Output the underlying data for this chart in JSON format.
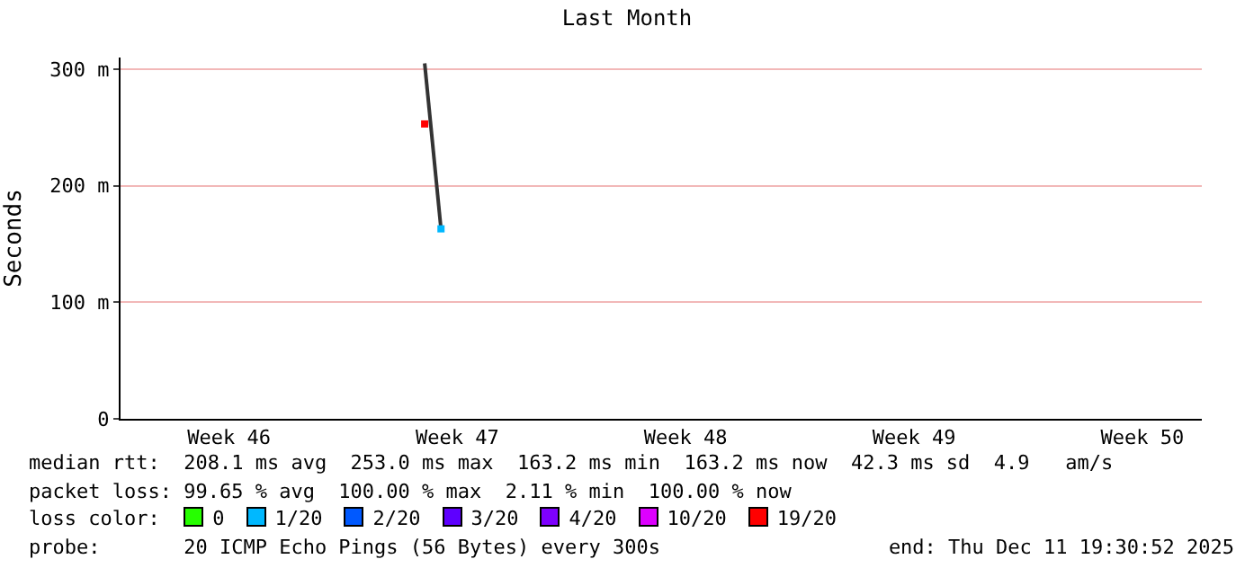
{
  "chart_data": {
    "type": "line",
    "title": "Last Month",
    "ylabel": "Seconds",
    "categories": [
      null,
      null,
      null,
      "Week 46",
      null,
      null,
      null,
      null,
      null,
      null,
      null,
      null,
      null,
      null,
      null,
      null,
      null,
      "Week 47",
      null,
      null,
      null,
      null,
      null,
      null,
      null,
      null,
      null,
      null,
      null,
      null,
      null,
      "Week 48",
      null,
      null,
      null,
      null,
      null,
      null,
      null,
      null,
      null,
      null,
      null,
      null,
      null,
      "Week 49",
      null,
      null,
      null,
      null,
      null,
      null,
      null,
      null,
      null,
      null,
      null,
      null,
      null,
      "Week 50"
    ],
    "ylim": [
      0,
      310
    ],
    "yticks": [
      0,
      {
        "value": 100,
        "label": "100 m"
      },
      {
        "value": 200,
        "label": "200 m"
      },
      {
        "value": 300,
        "label": "300 m"
      }
    ],
    "grid": "y",
    "legend": "bottom",
    "legend_title": "loss color:",
    "series": [
      {
        "color": "#333333",
        "values": [
          null,
          null,
          null,
          null,
          null,
          null,
          null,
          null,
          null,
          null,
          null,
          null,
          null,
          null,
          null,
          305,
          163,
          null,
          null,
          null,
          null,
          null,
          null,
          null,
          null,
          null,
          null,
          null,
          null,
          null,
          null,
          null,
          null,
          null,
          null,
          null,
          null,
          null,
          null,
          null,
          null,
          null,
          null,
          null,
          null,
          null,
          null,
          null,
          null,
          null,
          null,
          null,
          null,
          null,
          null,
          null,
          null,
          null,
          null,
          null
        ]
      },
      {
        "type": "scatter",
        "colors": [
          null,
          null,
          null,
          null,
          null,
          null,
          null,
          null,
          null,
          null,
          null,
          null,
          null,
          null,
          null,
          "#ff0000",
          "#00b8ff",
          null,
          null,
          null,
          null,
          null,
          null,
          null,
          null,
          null,
          null,
          null,
          null,
          null,
          null,
          null,
          null,
          null,
          null,
          null,
          null,
          null,
          null,
          null,
          null,
          null,
          null,
          null,
          null,
          null,
          null,
          null,
          null,
          null,
          null,
          null,
          null,
          null,
          null,
          null,
          null,
          null,
          null,
          null
        ],
        "values": [
          null,
          null,
          null,
          null,
          null,
          null,
          null,
          null,
          null,
          null,
          null,
          null,
          null,
          null,
          null,
          253,
          163,
          null,
          null,
          null,
          null,
          null,
          null,
          null,
          null,
          null,
          null,
          null,
          null,
          null,
          null,
          null,
          null,
          null,
          null,
          null,
          null,
          null,
          null,
          null,
          null,
          null,
          null,
          null,
          null,
          null,
          null,
          null,
          null,
          null,
          null,
          null,
          null,
          null,
          null,
          null,
          null,
          null,
          null,
          null
        ]
      },
      {
        "type": "scatter",
        "name": "0",
        "color": "#26ff00",
        "values": [
          null,
          null,
          null,
          null,
          null,
          null,
          null,
          null,
          null,
          null,
          null,
          null,
          null,
          null,
          null,
          null,
          null,
          null,
          null,
          null,
          null,
          null,
          null,
          null,
          null,
          null,
          null,
          null,
          null,
          null,
          null,
          null,
          null,
          null,
          null,
          null,
          null,
          null,
          null,
          null,
          null,
          null,
          null,
          null,
          null,
          null,
          null,
          null,
          null,
          null,
          null,
          null,
          null,
          null,
          null,
          null,
          null,
          null,
          null,
          null
        ]
      },
      {
        "type": "scatter",
        "name": "1/20",
        "color": "#00b8ff",
        "values": [
          null,
          null,
          null,
          null,
          null,
          null,
          null,
          null,
          null,
          null,
          null,
          null,
          null,
          null,
          null,
          null,
          null,
          null,
          null,
          null,
          null,
          null,
          null,
          null,
          null,
          null,
          null,
          null,
          null,
          null,
          null,
          null,
          null,
          null,
          null,
          null,
          null,
          null,
          null,
          null,
          null,
          null,
          null,
          null,
          null,
          null,
          null,
          null,
          null,
          null,
          null,
          null,
          null,
          null,
          null,
          null,
          null,
          null,
          null,
          null
        ]
      },
      {
        "type": "scatter",
        "name": "2/20",
        "color": "#0059ff",
        "values": [
          null,
          null,
          null,
          null,
          null,
          null,
          null,
          null,
          null,
          null,
          null,
          null,
          null,
          null,
          null,
          null,
          null,
          null,
          null,
          null,
          null,
          null,
          null,
          null,
          null,
          null,
          null,
          null,
          null,
          null,
          null,
          null,
          null,
          null,
          null,
          null,
          null,
          null,
          null,
          null,
          null,
          null,
          null,
          null,
          null,
          null,
          null,
          null,
          null,
          null,
          null,
          null,
          null,
          null,
          null,
          null,
          null,
          null,
          null,
          null
        ]
      },
      {
        "type": "scatter",
        "name": "3/20",
        "color": "#5e00ff",
        "values": [
          null,
          null,
          null,
          null,
          null,
          null,
          null,
          null,
          null,
          null,
          null,
          null,
          null,
          null,
          null,
          null,
          null,
          null,
          null,
          null,
          null,
          null,
          null,
          null,
          null,
          null,
          null,
          null,
          null,
          null,
          null,
          null,
          null,
          null,
          null,
          null,
          null,
          null,
          null,
          null,
          null,
          null,
          null,
          null,
          null,
          null,
          null,
          null,
          null,
          null,
          null,
          null,
          null,
          null,
          null,
          null,
          null,
          null,
          null,
          null
        ]
      },
      {
        "type": "scatter",
        "name": "4/20",
        "color": "#7e00ff",
        "values": [
          null,
          null,
          null,
          null,
          null,
          null,
          null,
          null,
          null,
          null,
          null,
          null,
          null,
          null,
          null,
          null,
          null,
          null,
          null,
          null,
          null,
          null,
          null,
          null,
          null,
          null,
          null,
          null,
          null,
          null,
          null,
          null,
          null,
          null,
          null,
          null,
          null,
          null,
          null,
          null,
          null,
          null,
          null,
          null,
          null,
          null,
          null,
          null,
          null,
          null,
          null,
          null,
          null,
          null,
          null,
          null,
          null,
          null,
          null,
          null
        ]
      },
      {
        "type": "scatter",
        "name": "10/20",
        "color": "#dd00ff",
        "values": [
          null,
          null,
          null,
          null,
          null,
          null,
          null,
          null,
          null,
          null,
          null,
          null,
          null,
          null,
          null,
          null,
          null,
          null,
          null,
          null,
          null,
          null,
          null,
          null,
          null,
          null,
          null,
          null,
          null,
          null,
          null,
          null,
          null,
          null,
          null,
          null,
          null,
          null,
          null,
          null,
          null,
          null,
          null,
          null,
          null,
          null,
          null,
          null,
          null,
          null,
          null,
          null,
          null,
          null,
          null,
          null,
          null,
          null,
          null,
          null
        ]
      },
      {
        "type": "scatter",
        "name": "19/20",
        "color": "#ff0000",
        "values": [
          null,
          null,
          null,
          null,
          null,
          null,
          null,
          null,
          null,
          null,
          null,
          null,
          null,
          null,
          null,
          null,
          null,
          null,
          null,
          null,
          null,
          null,
          null,
          null,
          null,
          null,
          null,
          null,
          null,
          null,
          null,
          null,
          null,
          null,
          null,
          null,
          null,
          null,
          null,
          null,
          null,
          null,
          null,
          null,
          null,
          null,
          null,
          null,
          null,
          null,
          null,
          null,
          null,
          null,
          null,
          null,
          null,
          null,
          null,
          null
        ]
      }
    ],
    "annotations": [
      "median rtt:  208.1 ms avg  253.0 ms max  163.2 ms min  163.2 ms now  42.3 ms sd  4.9   am/s",
      "packet loss: 99.65 % avg  100.00 % max  2.11 % min  100.00 % now",
      "probe:       20 ICMP Echo Pings (56 Bytes) every 300s",
      "end: Thu Dec 11 19:30:52 2025"
    ]
  }
}
